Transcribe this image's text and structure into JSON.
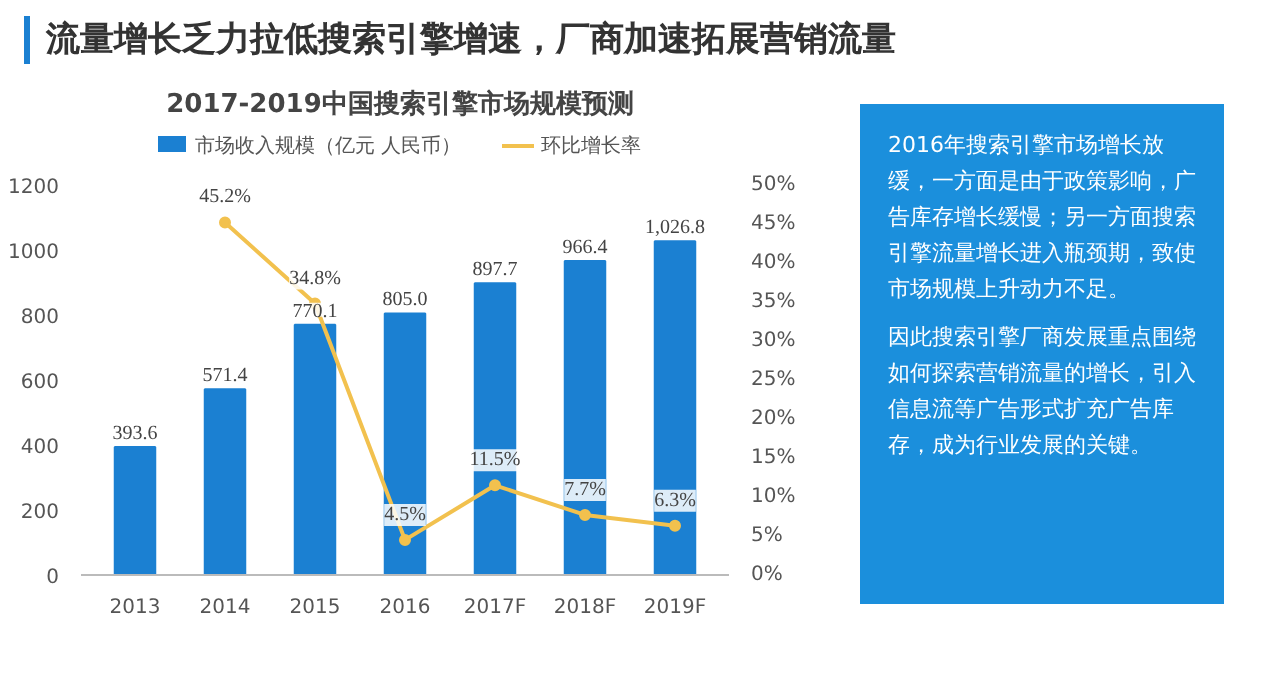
{
  "chart_data": {
    "type": "bar",
    "title": "流量增长乏力拉低搜索引擎增速，厂商加速拓展营销流量",
    "subtitle": "2017-2019中国搜索引擎市场规模预测",
    "categories": [
      "2013",
      "2014",
      "2015",
      "2016",
      "2017F",
      "2018F",
      "2019F"
    ],
    "series": [
      {
        "name": "市场收入规模（亿元 人民币）",
        "color": "#1b80d2",
        "values": [
          393.6,
          571.4,
          770.1,
          805.0,
          897.7,
          966.4,
          1026.8
        ],
        "value_labels": [
          "393.6",
          "571.4",
          "770.1",
          "805.0",
          "897.7",
          "966.4",
          "1,026.8"
        ]
      },
      {
        "name": "环比增长率",
        "type": "line",
        "axis": "y2",
        "color": "#f2c14e",
        "marker": "circle",
        "line_style": "solid",
        "values": [
          null,
          45.2,
          34.8,
          4.5,
          11.5,
          7.7,
          6.3
        ],
        "value_labels": [
          null,
          "45.2%",
          "34.8%",
          "4.5%",
          "11.5%",
          "7.7%",
          "6.3%"
        ]
      }
    ],
    "ylim": [
      0,
      1200
    ],
    "yticks": [
      0,
      200,
      400,
      600,
      800,
      1000,
      1200
    ],
    "y2lim": [
      0,
      50
    ],
    "y2ticks": [
      {
        "value": 0,
        "label": "0%"
      },
      {
        "value": 5,
        "label": "5%"
      },
      {
        "value": 10,
        "label": "10%"
      },
      {
        "value": 15,
        "label": "15%"
      },
      {
        "value": 20,
        "label": "20%"
      },
      {
        "value": 25,
        "label": "25%"
      },
      {
        "value": 30,
        "label": "30%"
      },
      {
        "value": 35,
        "label": "35%"
      },
      {
        "value": 40,
        "label": "40%"
      },
      {
        "value": 45,
        "label": "45%"
      },
      {
        "value": 50,
        "label": "50%"
      }
    ],
    "legend": "top",
    "grid": false,
    "annotations": [
      "2016年搜索引擎市场增长放缓，一方面是由于政策影响，广告库存增长缓慢；另一方面搜索引擎流量增长进入瓶颈期，致使市场规模上升动力不足。",
      "因此搜索引擎厂商发展重点围绕如何探索营销流量的增长，引入信息流等广告形式扩充广告库存，成为行业发展的关键。"
    ]
  }
}
